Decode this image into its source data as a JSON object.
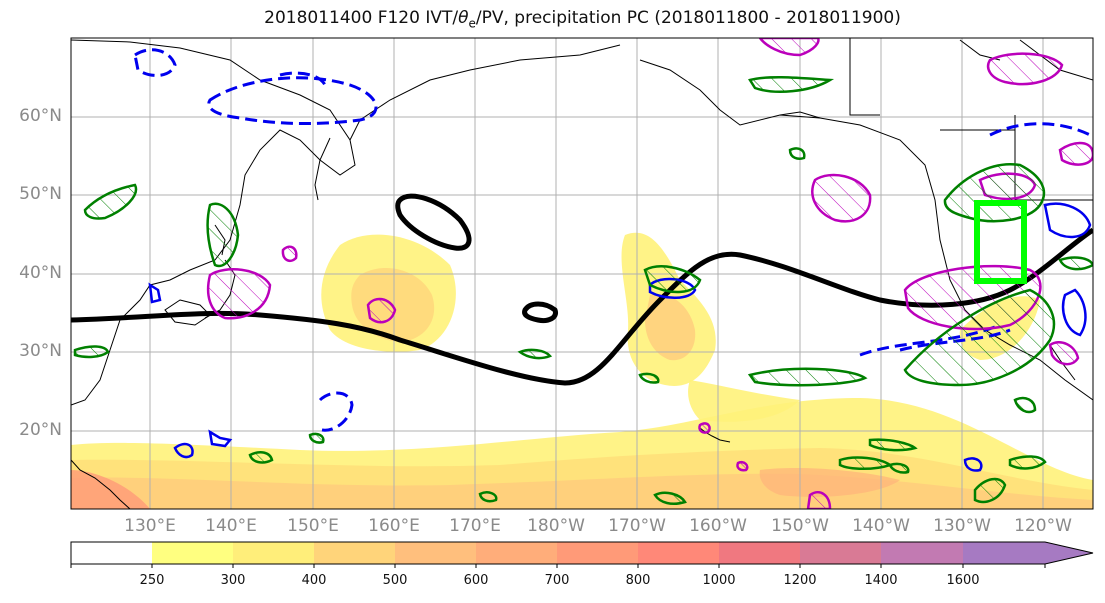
{
  "title": {
    "prefix": "2018011400 F120 IVT/",
    "theta": "θ",
    "theta_sub": "e",
    "suffix": "/PV, precipitation PC (2018011800 - 2018011900)"
  },
  "lat_labels": [
    "60°N",
    "50°N",
    "40°N",
    "30°N",
    "20°N"
  ],
  "lon_labels": [
    "130°E",
    "140°E",
    "150°E",
    "160°E",
    "170°E",
    "180°W",
    "170°W",
    "160°W",
    "150°W",
    "140°W",
    "130°W",
    "120°W"
  ],
  "colorbar": {
    "levels": [
      "250",
      "300",
      "400",
      "500",
      "600",
      "700",
      "800",
      "1000",
      "1200",
      "1400",
      "1600"
    ],
    "colors": [
      "#ffffff",
      "#ffff80",
      "#ffee7a",
      "#ffd47a",
      "#ffbf7d",
      "#ffad7a",
      "#ff9a78",
      "#ff8878",
      "#f07880",
      "#d97a95",
      "#c27ab2",
      "#a67ac2"
    ]
  },
  "colors": {
    "ivt_shading": "#ffd66e",
    "theta_e": "#000000",
    "pv_positive": "#0000ee",
    "green_contour": "#008000",
    "magenta_contour": "#bb00bb",
    "highlight_box": "#00ff00",
    "coastline": "#000000",
    "grid": "#b0b0b0"
  }
}
